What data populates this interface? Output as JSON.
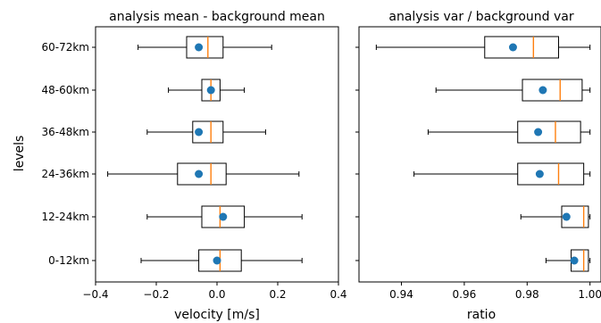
{
  "chart_data": [
    {
      "type": "boxplot",
      "title": "analysis mean - background mean",
      "xlabel": "velocity [m/s]",
      "ylabel": "levels",
      "xlim": [
        -0.4,
        0.4
      ],
      "xticks": [
        -0.4,
        -0.2,
        0.0,
        0.2,
        0.4
      ],
      "xtick_labels": [
        "−0.4",
        "−0.2",
        "0.0",
        "0.2",
        "0.4"
      ],
      "categories": [
        "0-12km",
        "12-24km",
        "24-36km",
        "36-48km",
        "48-60km",
        "60-72km"
      ],
      "boxes": [
        {
          "whislo": -0.25,
          "q1": -0.06,
          "med": 0.01,
          "q3": 0.08,
          "whishi": 0.28,
          "mean": 0.0
        },
        {
          "whislo": -0.23,
          "q1": -0.05,
          "med": 0.01,
          "q3": 0.09,
          "whishi": 0.28,
          "mean": 0.02
        },
        {
          "whislo": -0.36,
          "q1": -0.13,
          "med": -0.02,
          "q3": 0.03,
          "whishi": 0.27,
          "mean": -0.06
        },
        {
          "whislo": -0.23,
          "q1": -0.08,
          "med": -0.02,
          "q3": 0.02,
          "whishi": 0.16,
          "mean": -0.06
        },
        {
          "whislo": -0.16,
          "q1": -0.05,
          "med": -0.02,
          "q3": 0.01,
          "whishi": 0.09,
          "mean": -0.02
        },
        {
          "whislo": -0.26,
          "q1": -0.1,
          "med": -0.03,
          "q3": 0.02,
          "whishi": 0.18,
          "mean": -0.06
        }
      ],
      "grid": false
    },
    {
      "type": "boxplot",
      "title": "analysis var / background var",
      "xlabel": "ratio",
      "ylabel": "",
      "xlim": [
        0.9265,
        1.0035
      ],
      "xticks": [
        0.94,
        0.96,
        0.98,
        1.0
      ],
      "xtick_labels": [
        "0.94",
        "0.96",
        "0.98",
        "1.00"
      ],
      "categories": [
        "0-12km",
        "12-24km",
        "24-36km",
        "36-48km",
        "48-60km",
        "60-72km"
      ],
      "boxes": [
        {
          "whislo": 0.986,
          "q1": 0.994,
          "med": 0.998,
          "q3": 0.9995,
          "whishi": 1.0,
          "mean": 0.995
        },
        {
          "whislo": 0.978,
          "q1": 0.991,
          "med": 0.998,
          "q3": 0.9995,
          "whishi": 1.0,
          "mean": 0.9925
        },
        {
          "whislo": 0.944,
          "q1": 0.977,
          "med": 0.99,
          "q3": 0.998,
          "whishi": 1.0,
          "mean": 0.984
        },
        {
          "whislo": 0.9485,
          "q1": 0.977,
          "med": 0.989,
          "q3": 0.997,
          "whishi": 1.0,
          "mean": 0.9835
        },
        {
          "whislo": 0.951,
          "q1": 0.9785,
          "med": 0.9905,
          "q3": 0.9975,
          "whishi": 1.0,
          "mean": 0.985
        },
        {
          "whislo": 0.932,
          "q1": 0.9665,
          "med": 0.982,
          "q3": 0.99,
          "whishi": 1.0,
          "mean": 0.9755
        }
      ],
      "grid": false
    }
  ],
  "colors": {
    "mean_marker": "#1f77b4",
    "median_line": "#ff7f0e",
    "box_edge": "#000000"
  }
}
